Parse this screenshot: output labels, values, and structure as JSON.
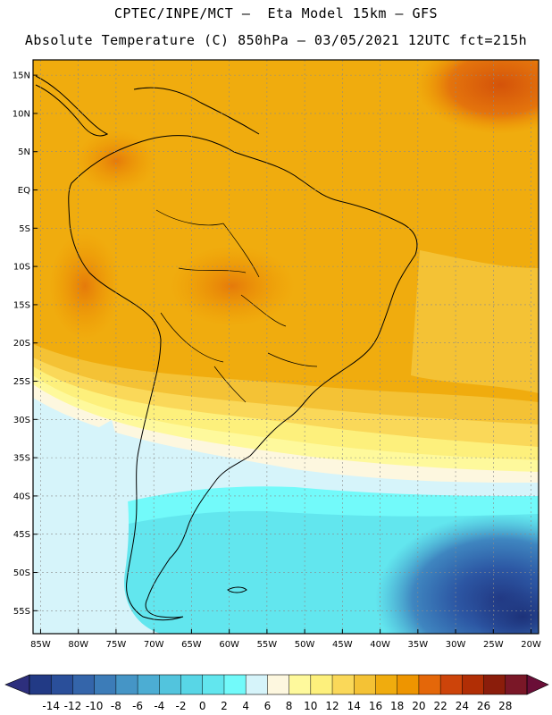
{
  "header": {
    "title_line1": "CPTEC/INPE/MCT –  Eta Model 15km – GFS",
    "title_line2": "Absolute Temperature (C) 850hPa – 03/05/2021 12UTC fct=215h"
  },
  "map": {
    "lat_labels": [
      "15N",
      "10N",
      "5N",
      "EQ",
      "5S",
      "10S",
      "15S",
      "20S",
      "25S",
      "30S",
      "35S",
      "40S",
      "45S",
      "50S",
      "55S"
    ],
    "lat_values": [
      15,
      10,
      5,
      0,
      -5,
      -10,
      -15,
      -20,
      -25,
      -30,
      -35,
      -40,
      -45,
      -50,
      -55
    ],
    "lon_labels": [
      "85W",
      "80W",
      "75W",
      "70W",
      "65W",
      "60W",
      "55W",
      "50W",
      "45W",
      "40W",
      "35W",
      "30W",
      "25W",
      "20W"
    ],
    "lon_values": [
      -85,
      -80,
      -75,
      -70,
      -65,
      -60,
      -55,
      -50,
      -45,
      -40,
      -35,
      -30,
      -25,
      -20
    ],
    "extent": {
      "lon": [
        -86,
        -19
      ],
      "lat": [
        -58,
        17
      ]
    }
  },
  "colorbar": {
    "labels": [
      "-14",
      "-12",
      "-10",
      "-8",
      "-6",
      "-4",
      "-2",
      "0",
      "2",
      "4",
      "6",
      "8",
      "10",
      "12",
      "14",
      "16",
      "18",
      "20",
      "22",
      "24",
      "26",
      "28"
    ],
    "colors": [
      "#223a85",
      "#2a4f9a",
      "#3465aa",
      "#3c7cb8",
      "#4595c6",
      "#4cadd3",
      "#52c4dd",
      "#58d6e6",
      "#62e6ee",
      "#72fafa",
      "#d6f4fa",
      "#fdf7df",
      "#fef99c",
      "#fdf07c",
      "#fad859",
      "#f4c235",
      "#f0ac0e",
      "#ee9500",
      "#e46709",
      "#cd440a",
      "#b12e05",
      "#8b1d0b",
      "#7a1727"
    ],
    "arrow_left": "#2d2f7d",
    "arrow_right": "#6a0e37"
  }
}
